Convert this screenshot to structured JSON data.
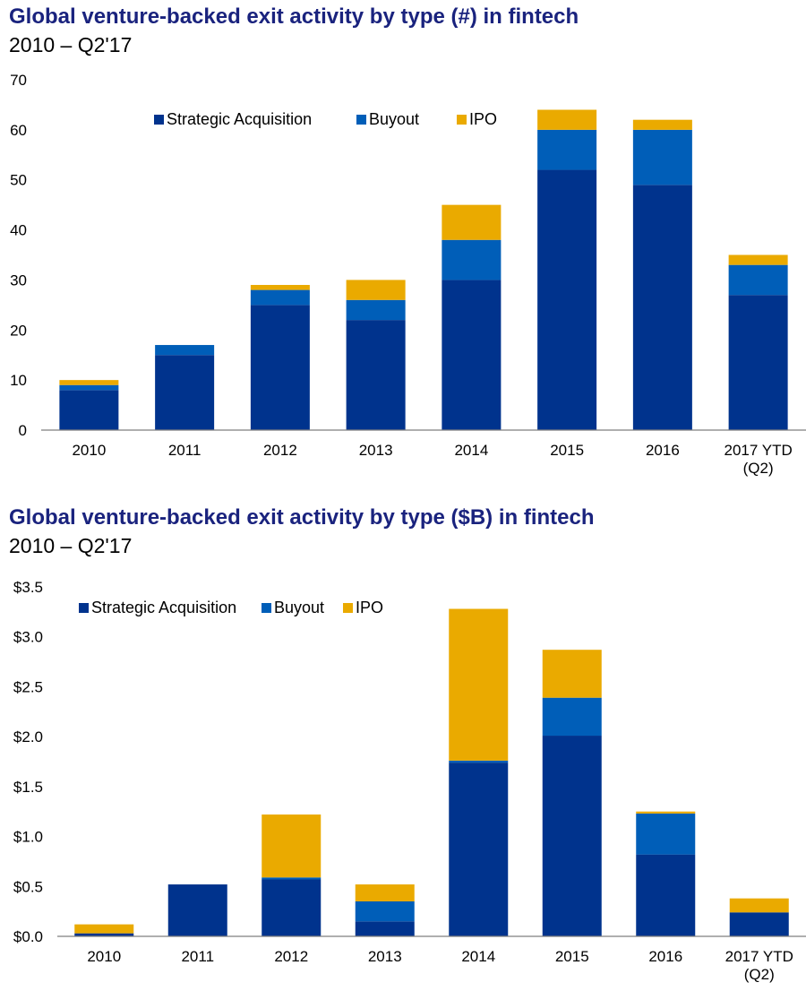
{
  "colors": {
    "strategic": "#00338d",
    "buyout": "#005eb8",
    "ipo": "#eaaa00",
    "title": "#1a237e",
    "axis": "#7f7f7f"
  },
  "chart_data": [
    {
      "type": "bar",
      "stacked": true,
      "title": "Global venture-backed exit activity by type (#) in fintech",
      "subtitle": "2010 – Q2'17",
      "xlabel": "",
      "ylabel": "",
      "ylim": [
        0,
        70
      ],
      "yticks": [
        "0",
        "10",
        "20",
        "30",
        "40",
        "50",
        "60",
        "70"
      ],
      "yticks_values": [
        0,
        10,
        20,
        30,
        40,
        50,
        60,
        70
      ],
      "grid": false,
      "legend_position": "top-center",
      "categories": [
        "2010",
        "2011",
        "2012",
        "2013",
        "2014",
        "2015",
        "2016",
        "2017 YTD\n(Q2)"
      ],
      "series": [
        {
          "name": "Strategic Acquisition",
          "color_key": "strategic",
          "values": [
            8,
            15,
            25,
            22,
            30,
            52,
            49,
            27
          ]
        },
        {
          "name": "Buyout",
          "color_key": "buyout",
          "values": [
            1,
            2,
            3,
            4,
            8,
            8,
            11,
            6
          ]
        },
        {
          "name": "IPO",
          "color_key": "ipo",
          "values": [
            1,
            0,
            1,
            4,
            7,
            4,
            2,
            2
          ]
        }
      ]
    },
    {
      "type": "bar",
      "stacked": true,
      "title": "Global venture-backed exit activity by type ($B) in fintech",
      "subtitle": "2010 – Q2'17",
      "xlabel": "",
      "ylabel": "",
      "ylim": [
        0,
        3.5
      ],
      "yticks": [
        "$0.0",
        "$0.5",
        "$1.0",
        "$1.5",
        "$2.0",
        "$2.5",
        "$3.0",
        "$3.5"
      ],
      "yticks_values": [
        0,
        0.5,
        1.0,
        1.5,
        2.0,
        2.5,
        3.0,
        3.5
      ],
      "grid": false,
      "legend_position": "top-left",
      "categories": [
        "2010",
        "2011",
        "2012",
        "2013",
        "2014",
        "2015",
        "2016",
        "2017 YTD\n(Q2)"
      ],
      "series": [
        {
          "name": "Strategic Acquisition",
          "color_key": "strategic",
          "values": [
            0.03,
            0.52,
            0.57,
            0.15,
            1.74,
            2.01,
            0.82,
            0.24
          ]
        },
        {
          "name": "Buyout",
          "color_key": "buyout",
          "values": [
            0.0,
            0.0,
            0.02,
            0.2,
            0.02,
            0.38,
            0.41,
            0.0
          ]
        },
        {
          "name": "IPO",
          "color_key": "ipo",
          "values": [
            0.09,
            0.0,
            0.63,
            0.17,
            1.52,
            0.48,
            0.02,
            0.14
          ]
        }
      ]
    }
  ]
}
